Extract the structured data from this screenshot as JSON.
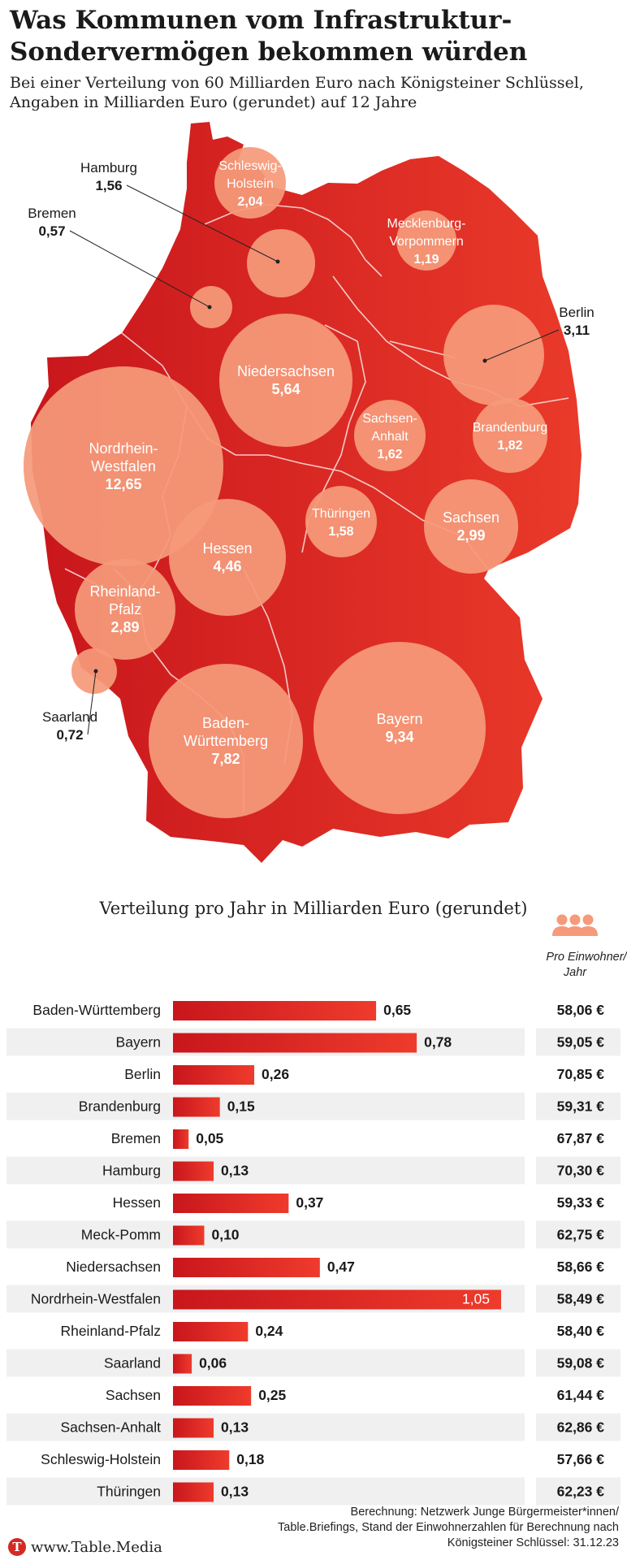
{
  "title": "Was Kommunen vom Infrastruktur-Sondervermögen bekommen würden",
  "subtitle": "Bei einer Verteilung von 60 Milliarden Euro nach Königsteiner Schlüssel, Angaben in Milliarden Euro (gerundet) auf 12 Jahre",
  "colors": {
    "accent": "#d42a24",
    "bubble": "#f59a7a",
    "bar_dark": "#c8161c",
    "bar_light": "#ef3b2c",
    "stripe": "#f0f0f0"
  },
  "map": {
    "regions": [
      {
        "name": "Schleswig-Holstein",
        "value": "2,04"
      },
      {
        "name": "Hamburg",
        "value": "1,56"
      },
      {
        "name": "Bremen",
        "value": "0,57"
      },
      {
        "name": "Mecklenburg-Vorpommern",
        "value": "1,19"
      },
      {
        "name": "Berlin",
        "value": "3,11"
      },
      {
        "name": "Niedersachsen",
        "value": "5,64"
      },
      {
        "name": "Sachsen-Anhalt",
        "value": "1,62"
      },
      {
        "name": "Brandenburg",
        "value": "1,82"
      },
      {
        "name": "Nordrhein-Westfalen",
        "value": "12,65"
      },
      {
        "name": "Thüringen",
        "value": "1,58"
      },
      {
        "name": "Sachsen",
        "value": "2,99"
      },
      {
        "name": "Hessen",
        "value": "4,46"
      },
      {
        "name": "Rheinland-Pfalz",
        "value": "2,89"
      },
      {
        "name": "Saarland",
        "value": "0,72"
      },
      {
        "name": "Baden-Württemberg",
        "value": "7,82"
      },
      {
        "name": "Bayern",
        "value": "9,34"
      }
    ]
  },
  "bar_section": {
    "title": "Verteilung pro Jahr in Milliarden Euro (gerundet)",
    "per_capita_header": "Pro Einwohner/ Jahr",
    "per_capita_icon": "people-icon"
  },
  "chart_data": {
    "type": "bar",
    "title": "Verteilung pro Jahr in Milliarden Euro (gerundet)",
    "categories": [
      "Baden-Württemberg",
      "Bayern",
      "Berlin",
      "Brandenburg",
      "Bremen",
      "Hamburg",
      "Hessen",
      "Meck-Pomm",
      "Niedersachsen",
      "Nordrhein-Westfalen",
      "Rheinland-Pfalz",
      "Saarland",
      "Sachsen",
      "Sachsen-Anhalt",
      "Schleswig-Holstein",
      "Thüringen"
    ],
    "values": [
      0.65,
      0.78,
      0.26,
      0.15,
      0.05,
      0.13,
      0.37,
      0.1,
      0.47,
      1.05,
      0.24,
      0.06,
      0.25,
      0.13,
      0.18,
      0.13
    ],
    "value_labels": [
      "0,65",
      "0,78",
      "0,26",
      "0,15",
      "0,05",
      "0,13",
      "0,37",
      "0,10",
      "0,47",
      "1,05",
      "0,24",
      "0,06",
      "0,25",
      "0,13",
      "0,18",
      "0,13"
    ],
    "per_capita": [
      "58,06 €",
      "59,05 €",
      "70,85 €",
      "59,31 €",
      "67,87 €",
      "70,30 €",
      "59,33 €",
      "62,75 €",
      "58,66 €",
      "58,49 €",
      "58,40 €",
      "59,08 €",
      "61,44 €",
      "62,86 €",
      "57,66 €",
      "62,23 €"
    ],
    "xlim": [
      0,
      1.05
    ]
  },
  "footer": {
    "note": "Berechnung: Netzwerk Junge Bürgermeister*innen/ Table.Briefings, Stand der Einwohnerzahlen für Berechnung nach Königsteiner Schlüssel: 31.12.23",
    "brand": "www.Table.Media",
    "brand_logo": "T"
  }
}
